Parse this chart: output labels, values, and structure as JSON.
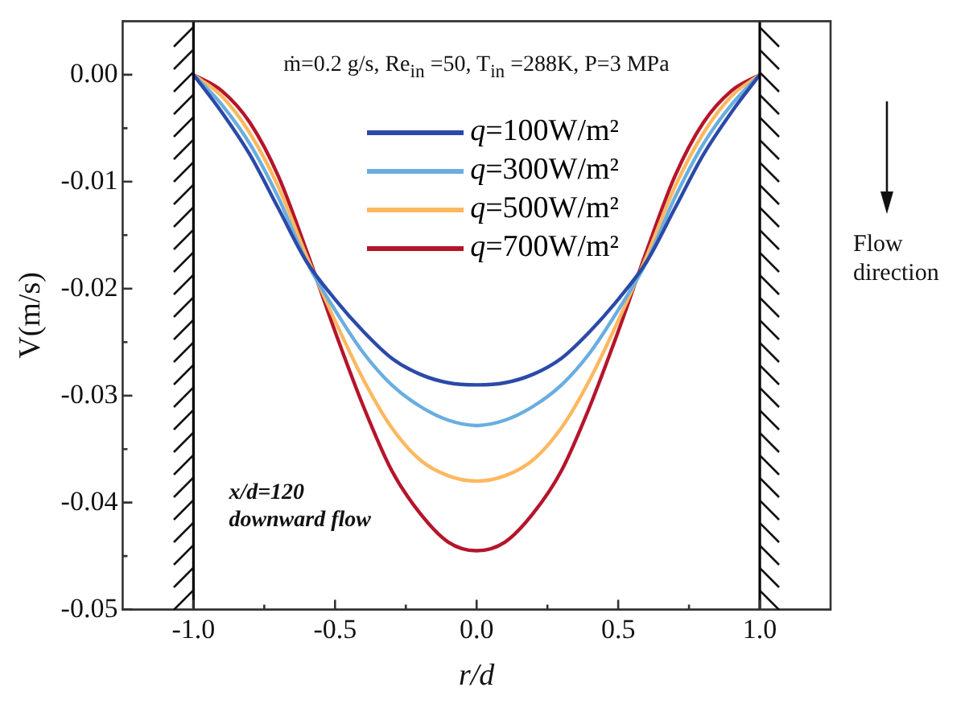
{
  "chart_data": {
    "type": "line",
    "xlabel": "r/d",
    "ylabel": "V(m/s)",
    "annotations": [
      "ṁ=0.2 g/s, Re$_{in}$ =50, T$_{in}$ =288K, P=3 MPa",
      "x/d=120\ndownward flow",
      "Flow\ndirection"
    ],
    "x": [
      -1,
      -0.9,
      -0.8,
      -0.7,
      -0.6,
      -0.5,
      -0.4,
      -0.3,
      -0.2,
      -0.1,
      0,
      0.1,
      0.2,
      0.3,
      0.4,
      0.5,
      0.6,
      0.7,
      0.8,
      0.9,
      1
    ],
    "series": [
      {
        "name": "q=100W/m²",
        "color": "#2b4aa8",
        "values": [
          0,
          -0.0035,
          -0.0075,
          -0.0125,
          -0.0175,
          -0.021,
          -0.024,
          -0.0265,
          -0.028,
          -0.0288,
          -0.029,
          -0.0288,
          -0.028,
          -0.0265,
          -0.024,
          -0.021,
          -0.0175,
          -0.0125,
          -0.0075,
          -0.0035,
          0
        ]
      },
      {
        "name": "q=300W/m²",
        "color": "#6aaee0",
        "values": [
          0,
          -0.0028,
          -0.0065,
          -0.0115,
          -0.0175,
          -0.022,
          -0.026,
          -0.029,
          -0.031,
          -0.0323,
          -0.0328,
          -0.0323,
          -0.031,
          -0.029,
          -0.026,
          -0.022,
          -0.0175,
          -0.0115,
          -0.0065,
          -0.0028,
          0
        ]
      },
      {
        "name": "q=500W/m²",
        "color": "#fdb860",
        "values": [
          0,
          -0.002,
          -0.0055,
          -0.0105,
          -0.017,
          -0.023,
          -0.0285,
          -0.033,
          -0.036,
          -0.0375,
          -0.038,
          -0.0375,
          -0.036,
          -0.033,
          -0.0285,
          -0.023,
          -0.017,
          -0.0105,
          -0.0055,
          -0.002,
          0
        ]
      },
      {
        "name": "q=700W/m²",
        "color": "#b5152b",
        "values": [
          0,
          -0.0015,
          -0.0045,
          -0.0095,
          -0.0165,
          -0.024,
          -0.031,
          -0.037,
          -0.041,
          -0.0437,
          -0.0445,
          -0.0437,
          -0.041,
          -0.037,
          -0.031,
          -0.024,
          -0.0165,
          -0.0095,
          -0.0045,
          -0.0015,
          0
        ]
      }
    ],
    "xlim": [
      -1.25,
      1.25
    ],
    "xticks": [
      {
        "value": -1,
        "label": "-1.0"
      },
      {
        "value": -0.75,
        "label": null
      },
      {
        "value": -0.5,
        "label": "-0.5"
      },
      {
        "value": -0.25,
        "label": null
      },
      {
        "value": 0,
        "label": "0.0"
      },
      {
        "value": 0.25,
        "label": null
      },
      {
        "value": 0.5,
        "label": "0.5"
      },
      {
        "value": 0.75,
        "label": null
      },
      {
        "value": 1,
        "label": "1.0"
      }
    ],
    "ylim": [
      -0.05,
      0.005
    ],
    "yticks": [
      {
        "value": -0.05,
        "label": "-0.05"
      },
      {
        "value": -0.045,
        "label": null
      },
      {
        "value": -0.04,
        "label": "-0.04"
      },
      {
        "value": -0.035,
        "label": null
      },
      {
        "value": -0.03,
        "label": "-0.03"
      },
      {
        "value": -0.025,
        "label": null
      },
      {
        "value": -0.02,
        "label": "-0.02"
      },
      {
        "value": -0.015,
        "label": null
      },
      {
        "value": -0.01,
        "label": "-0.01"
      },
      {
        "value": -0.005,
        "label": null
      },
      {
        "value": 0,
        "label": "0.00"
      }
    ],
    "ref_lines": [
      {
        "axis": "x",
        "value": -1,
        "color": "#000000"
      },
      {
        "axis": "x",
        "value": 1,
        "color": "#000000"
      }
    ],
    "legend": "top",
    "grid": false,
    "marker": "none",
    "line_style": "solid"
  }
}
